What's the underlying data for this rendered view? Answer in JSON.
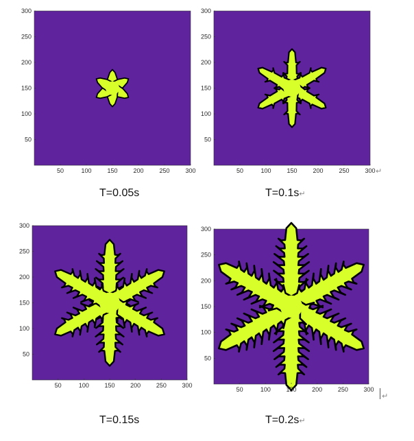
{
  "colors": {
    "background": "#5e239d",
    "crystal_fill": "#d8ff2a",
    "crystal_edge": "#000000",
    "axis": "#333333"
  },
  "axis_ticks": {
    "x": [
      "50",
      "100",
      "150",
      "200",
      "250",
      "300"
    ],
    "y": [
      "300",
      "250",
      "200",
      "150",
      "100",
      "50"
    ]
  },
  "panels": [
    {
      "caption": "T=0.05s",
      "return_mark": ""
    },
    {
      "caption": "T=0.1s",
      "return_mark": "↵"
    },
    {
      "caption": "T=0.15s",
      "return_mark": ""
    },
    {
      "caption": "T=0.2s",
      "return_mark": "↵"
    }
  ],
  "side_marks": [
    "↵",
    "↵"
  ]
}
